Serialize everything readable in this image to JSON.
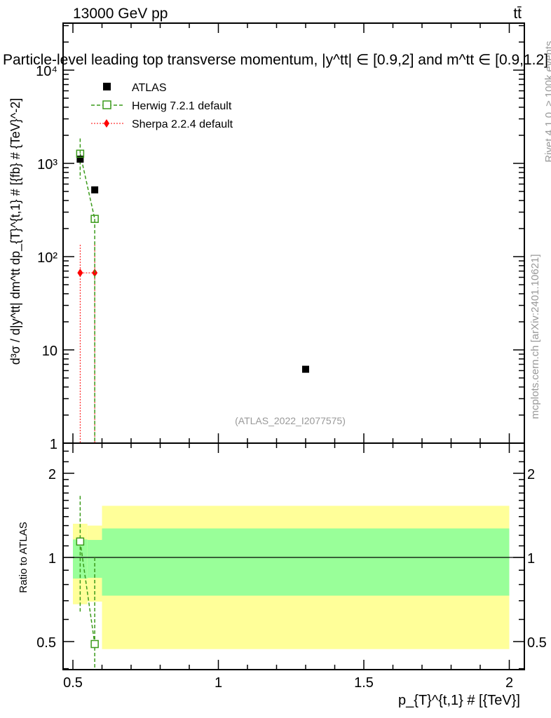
{
  "chart_data": [
    {
      "type": "scatter",
      "panel": "main",
      "title": "Particle-level leading top transverse momentum, |y^tt| ∈ [0.9,2] and m^tt ∈ [0.9,1.2]",
      "header_left": "13000 GeV pp",
      "header_right": "tt̄",
      "ylabel": "d³σ / d|y^tt| dm^tt dp_{T}^{t,1} # [{fb} # {TeV}^-2]",
      "yscale": "log",
      "ylim": [
        1,
        30000
      ],
      "xlim": [
        0.466,
        2.04
      ],
      "yticks": [
        {
          "v": 1,
          "label": "1"
        },
        {
          "v": 10,
          "label": "10"
        },
        {
          "v": 100,
          "label": "10²"
        },
        {
          "v": 1000,
          "label": "10³"
        },
        {
          "v": 10000,
          "label": "10⁴"
        }
      ],
      "legend_position": "top-left",
      "series": [
        {
          "name": "ATLAS",
          "color": "#000000",
          "marker": "filled-square",
          "points": [
            {
              "x": 0.525,
              "y": 1110
            },
            {
              "x": 0.575,
              "y": 520
            },
            {
              "x": 1.3,
              "y": 6.2
            }
          ]
        },
        {
          "name": "Herwig 7.2.1 default",
          "color": "#3a9a1a",
          "marker": "open-square",
          "line": "dashed",
          "points": [
            {
              "x": 0.525,
              "y": 1270,
              "lo": 680,
              "hi": 1850
            },
            {
              "x": 0.575,
              "y": 254,
              "lo": 0.5,
              "hi": 254
            }
          ]
        },
        {
          "name": "Sherpa 2.2.4 default",
          "color": "#ff0000",
          "marker": "diamond",
          "line": "dotted",
          "points": [
            {
              "x": 0.525,
              "y": 67,
              "lo": 0.5,
              "hi": 134
            },
            {
              "x": 0.575,
              "y": 67,
              "lo": 0.5,
              "hi": 134
            }
          ]
        }
      ],
      "watermark": "(ATLAS_2022_I2077575)",
      "side_labels": [
        "Rivet 4.1.0, ≥ 100k events",
        "mcplots.cern.ch [arXiv:2401.10621]"
      ]
    },
    {
      "type": "scatter",
      "panel": "ratio",
      "ylabel": "Ratio to ATLAS",
      "xlabel": "p_{T}^{t,1} # [{TeV}]",
      "yscale": "log",
      "ylim": [
        0.4,
        2.56
      ],
      "yticks": [
        {
          "v": 0.5,
          "label": "0.5"
        },
        {
          "v": 1,
          "label": "1"
        },
        {
          "v": 2,
          "label": "2"
        }
      ],
      "xticks": [
        {
          "v": 0.5,
          "label": "0.5"
        },
        {
          "v": 1,
          "label": "1"
        },
        {
          "v": 1.5,
          "label": "1.5"
        },
        {
          "v": 2,
          "label": "2"
        }
      ],
      "bands": [
        {
          "x0": 0.5,
          "x1": 0.55,
          "yellow": [
            0.68,
            1.32
          ],
          "green": [
            0.84,
            1.16
          ]
        },
        {
          "x0": 0.55,
          "x1": 0.6,
          "yellow": [
            0.695,
            1.3
          ],
          "green": [
            0.845,
            1.155
          ]
        },
        {
          "x0": 0.6,
          "x1": 2.0,
          "yellow": [
            0.47,
            1.53
          ],
          "green": [
            0.73,
            1.27
          ]
        }
      ],
      "series": [
        {
          "name": "Herwig 7.2.1 default",
          "points": [
            {
              "x": 0.525,
              "y": 1.14,
              "lo": 0.63,
              "hi": 1.66
            },
            {
              "x": 0.575,
              "y": 0.49,
              "lo": 0.3,
              "hi": 1.0
            }
          ]
        }
      ]
    }
  ]
}
